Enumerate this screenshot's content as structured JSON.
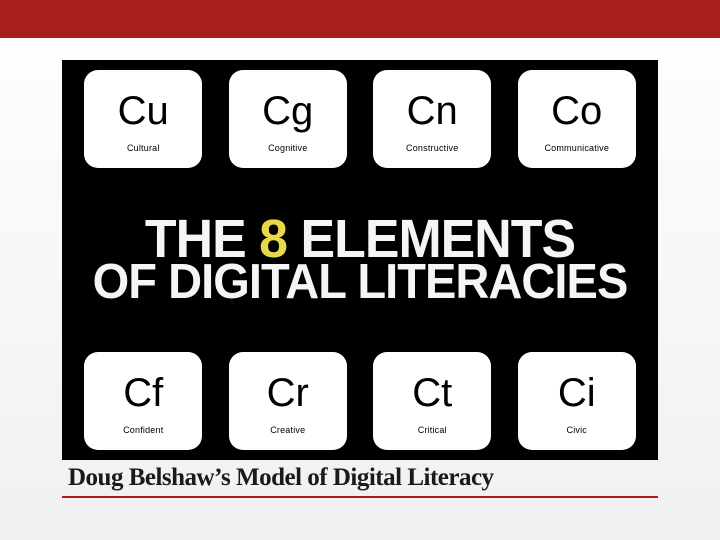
{
  "topbar_color": "#a61e1e",
  "panel": {
    "background": "#000000",
    "tiles_top": [
      {
        "symbol": "Cu",
        "label": "Cultural"
      },
      {
        "symbol": "Cg",
        "label": "Cognitive"
      },
      {
        "symbol": "Cn",
        "label": "Constructive"
      },
      {
        "symbol": "Co",
        "label": "Communicative"
      }
    ],
    "tiles_bottom": [
      {
        "symbol": "Cf",
        "label": "Confident"
      },
      {
        "symbol": "Cr",
        "label": "Creative"
      },
      {
        "symbol": "Ct",
        "label": "Critical"
      },
      {
        "symbol": "Ci",
        "label": "Civic"
      }
    ],
    "headline": {
      "prefix": "THE ",
      "highlight": "8",
      "suffix": " ELEMENTS",
      "line2": "OF DIGITAL LITERACIES",
      "highlight_color": "#e8d94a",
      "text_color": "#f5f5f5"
    }
  },
  "caption": "Doug Belshaw’s Model of Digital Literacy",
  "caption_underline_color": "#a61e1e",
  "tile_style": {
    "background": "#ffffff",
    "border_radius": 14,
    "symbol_fontsize": 40,
    "label_fontsize": 9
  }
}
